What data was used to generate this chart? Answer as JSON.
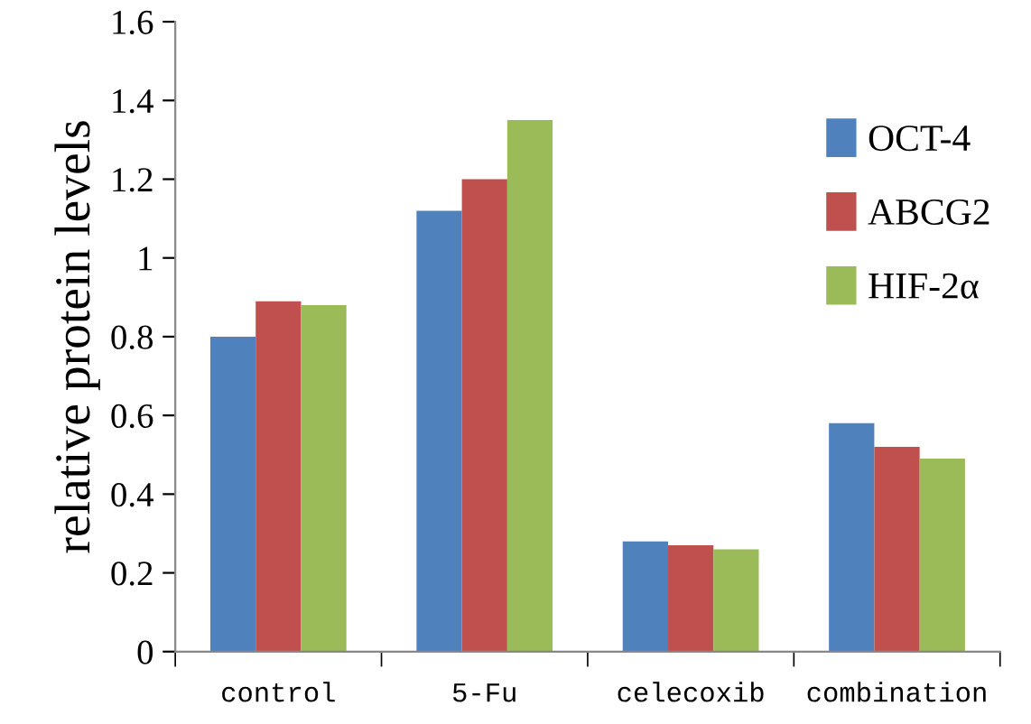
{
  "chart_data": {
    "type": "bar",
    "ylabel": "relative protein levels",
    "categories": [
      "control",
      "5-Fu",
      "celecoxib",
      "combination"
    ],
    "series": [
      {
        "name": "OCT-4",
        "color": "#4f81bd",
        "values": [
          0.8,
          1.12,
          0.28,
          0.58
        ]
      },
      {
        "name": "ABCG2",
        "color": "#c0504d",
        "values": [
          0.89,
          1.2,
          0.27,
          0.52
        ]
      },
      {
        "name": "HIF-2α",
        "color": "#9bbb59",
        "values": [
          0.88,
          1.35,
          0.26,
          0.49
        ]
      }
    ],
    "ylim": [
      0,
      1.6
    ],
    "yticks": [
      0,
      0.2,
      0.4,
      0.6,
      0.8,
      1,
      1.2,
      1.4,
      1.6
    ],
    "grid": false,
    "legend": "top right"
  }
}
